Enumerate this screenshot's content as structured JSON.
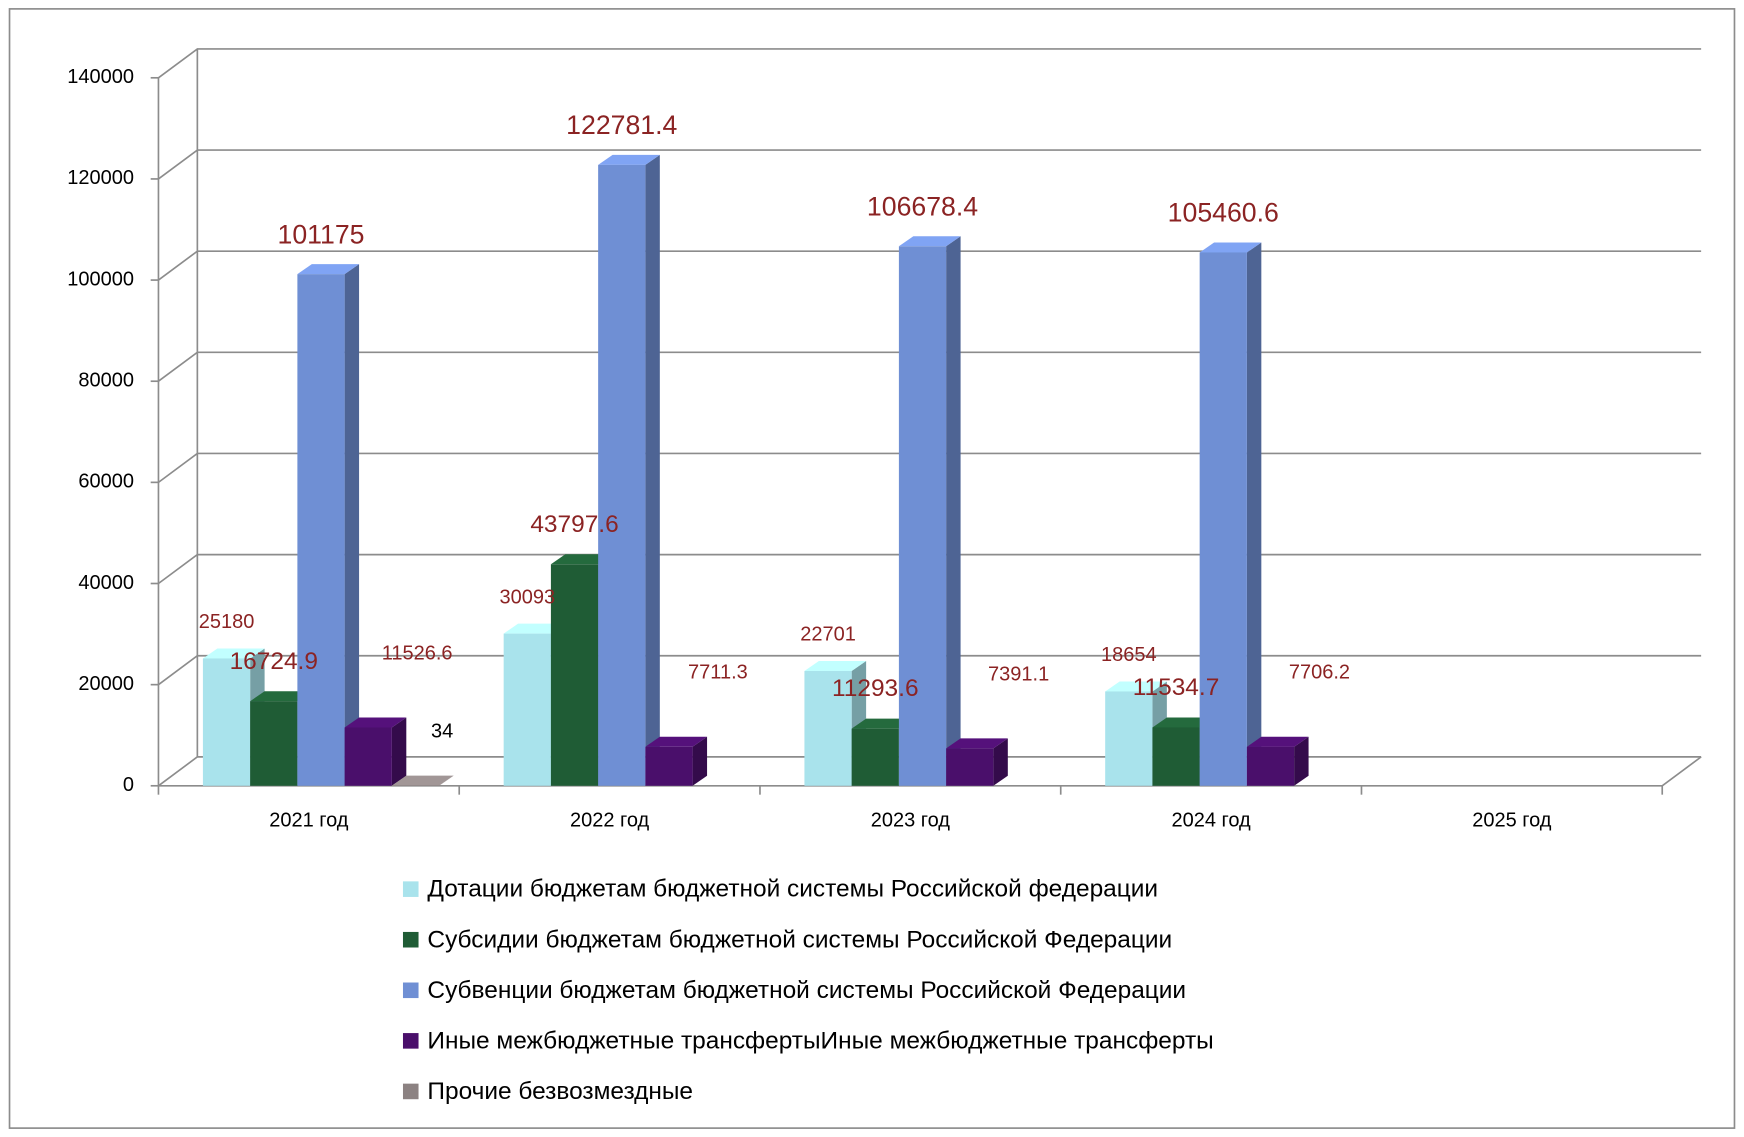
{
  "chart_data": {
    "type": "bar3d",
    "categories": [
      "2021 год",
      "2022 год",
      "2023 год",
      "2024 год",
      "2025 год"
    ],
    "series": [
      {
        "name": "Дотации бюджетам бюджетной системы Российской федерации",
        "color": "#a9e3ec",
        "values": [
          25180,
          30093,
          22701,
          18654,
          null
        ]
      },
      {
        "name": "Субсидии бюджетам бюджетной системы Российской Федерации",
        "color": "#1f5c35",
        "values": [
          16724.9,
          43797.6,
          11293.6,
          11534.7,
          null
        ]
      },
      {
        "name": "Субвенции бюджетам бюджетной системы Российской Федерации",
        "color": "#6f8fd4",
        "values": [
          101175,
          122781.4,
          106678.4,
          105460.6,
          null
        ]
      },
      {
        "name": "Иные межбюджетные трансфертыИные межбюджетные трансферты",
        "color": "#4a0f6b",
        "values": [
          11526.6,
          7711.3,
          7391.1,
          7706.2,
          null
        ]
      },
      {
        "name": "Прочие безвозмездные",
        "color": "#8c8282",
        "values": [
          34,
          null,
          null,
          null,
          null
        ]
      }
    ],
    "ylim": [
      0,
      140000
    ],
    "yticks": [
      0,
      20000,
      40000,
      60000,
      80000,
      100000,
      120000,
      140000
    ],
    "grid": true
  }
}
